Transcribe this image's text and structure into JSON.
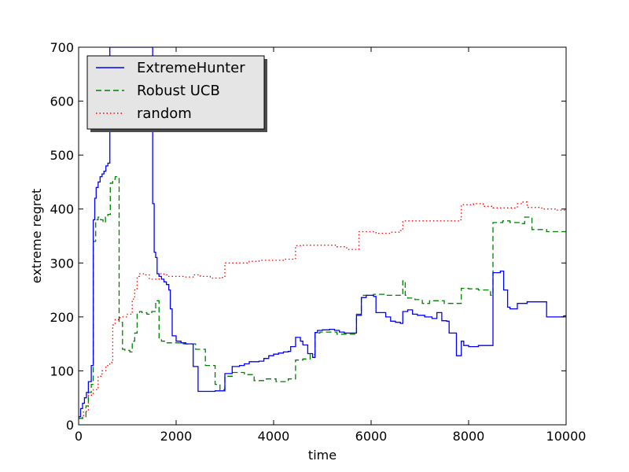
{
  "chart_data": {
    "type": "line",
    "title": "",
    "xlabel": "time",
    "ylabel": "extreme regret",
    "xlim": [
      0,
      10000
    ],
    "ylim": [
      0,
      700
    ],
    "x_ticks": [
      0,
      2000,
      4000,
      6000,
      8000,
      10000
    ],
    "y_ticks": [
      0,
      100,
      200,
      300,
      400,
      500,
      600,
      700
    ],
    "grid": false,
    "legend_position": "top-left",
    "series": [
      {
        "name": "ExtremeHunter",
        "color": "#0000ff",
        "style": "solid",
        "step": true,
        "points": [
          [
            0,
            15
          ],
          [
            40,
            30
          ],
          [
            80,
            40
          ],
          [
            120,
            50
          ],
          [
            160,
            60
          ],
          [
            200,
            80
          ],
          [
            260,
            110
          ],
          [
            300,
            380
          ],
          [
            330,
            420
          ],
          [
            360,
            440
          ],
          [
            400,
            450
          ],
          [
            440,
            460
          ],
          [
            480,
            465
          ],
          [
            520,
            470
          ],
          [
            560,
            480
          ],
          [
            600,
            485
          ],
          [
            640,
            700
          ],
          [
            1500,
            700
          ],
          [
            1520,
            410
          ],
          [
            1550,
            320
          ],
          [
            1580,
            310
          ],
          [
            1610,
            280
          ],
          [
            1650,
            275
          ],
          [
            1700,
            270
          ],
          [
            1750,
            265
          ],
          [
            1800,
            260
          ],
          [
            1850,
            250
          ],
          [
            1880,
            215
          ],
          [
            1920,
            165
          ],
          [
            2000,
            155
          ],
          [
            2100,
            152
          ],
          [
            2200,
            150
          ],
          [
            2300,
            150
          ],
          [
            2350,
            108
          ],
          [
            2450,
            62
          ],
          [
            2700,
            62
          ],
          [
            2800,
            63
          ],
          [
            2950,
            63
          ],
          [
            3000,
            95
          ],
          [
            3150,
            108
          ],
          [
            3300,
            110
          ],
          [
            3400,
            113
          ],
          [
            3500,
            117
          ],
          [
            3700,
            118
          ],
          [
            3800,
            123
          ],
          [
            3900,
            128
          ],
          [
            4000,
            131
          ],
          [
            4100,
            133
          ],
          [
            4200,
            135
          ],
          [
            4300,
            136
          ],
          [
            4350,
            145
          ],
          [
            4450,
            162
          ],
          [
            4550,
            155
          ],
          [
            4600,
            148
          ],
          [
            4700,
            132
          ],
          [
            4800,
            125
          ],
          [
            4850,
            171
          ],
          [
            4900,
            175
          ],
          [
            5000,
            176
          ],
          [
            5150,
            177
          ],
          [
            5250,
            175
          ],
          [
            5350,
            172
          ],
          [
            5450,
            170
          ],
          [
            5700,
            203
          ],
          [
            5800,
            236
          ],
          [
            5900,
            240
          ],
          [
            6050,
            238
          ],
          [
            6100,
            208
          ],
          [
            6200,
            208
          ],
          [
            6300,
            200
          ],
          [
            6400,
            192
          ],
          [
            6500,
            190
          ],
          [
            6600,
            188
          ],
          [
            6650,
            210
          ],
          [
            6750,
            213
          ],
          [
            6850,
            205
          ],
          [
            6950,
            203
          ],
          [
            7100,
            200
          ],
          [
            7250,
            197
          ],
          [
            7350,
            208
          ],
          [
            7450,
            193
          ],
          [
            7550,
            192
          ],
          [
            7600,
            170
          ],
          [
            7750,
            128
          ],
          [
            7850,
            155
          ],
          [
            7900,
            147
          ],
          [
            8000,
            145
          ],
          [
            8100,
            145
          ],
          [
            8200,
            147
          ],
          [
            8400,
            147
          ],
          [
            8500,
            282
          ],
          [
            8650,
            285
          ],
          [
            8720,
            250
          ],
          [
            8800,
            218
          ],
          [
            8850,
            215
          ],
          [
            9000,
            225
          ],
          [
            9200,
            228
          ],
          [
            9450,
            228
          ],
          [
            9600,
            200
          ],
          [
            9950,
            202
          ],
          [
            10000,
            202
          ]
        ]
      },
      {
        "name": "Robust UCB",
        "color": "#008000",
        "style": "dashed",
        "step": true,
        "points": [
          [
            0,
            12
          ],
          [
            80,
            15
          ],
          [
            150,
            35
          ],
          [
            200,
            60
          ],
          [
            260,
            75
          ],
          [
            300,
            340
          ],
          [
            350,
            380
          ],
          [
            400,
            385
          ],
          [
            450,
            380
          ],
          [
            500,
            375
          ],
          [
            550,
            385
          ],
          [
            600,
            390
          ],
          [
            650,
            448
          ],
          [
            700,
            455
          ],
          [
            750,
            460
          ],
          [
            800,
            460
          ],
          [
            830,
            190
          ],
          [
            900,
            140
          ],
          [
            950,
            138
          ],
          [
            1050,
            135
          ],
          [
            1100,
            155
          ],
          [
            1150,
            170
          ],
          [
            1200,
            205
          ],
          [
            1250,
            210
          ],
          [
            1300,
            208
          ],
          [
            1400,
            205
          ],
          [
            1500,
            210
          ],
          [
            1580,
            230
          ],
          [
            1650,
            160
          ],
          [
            1700,
            155
          ],
          [
            1800,
            152
          ],
          [
            1950,
            152
          ],
          [
            2100,
            150
          ],
          [
            2250,
            150
          ],
          [
            2400,
            140
          ],
          [
            2600,
            110
          ],
          [
            2800,
            75
          ],
          [
            2900,
            65
          ],
          [
            3000,
            90
          ],
          [
            3150,
            97
          ],
          [
            3400,
            93
          ],
          [
            3600,
            82
          ],
          [
            3850,
            85
          ],
          [
            4050,
            80
          ],
          [
            4300,
            85
          ],
          [
            4450,
            120
          ],
          [
            4600,
            122
          ],
          [
            4750,
            130
          ],
          [
            4850,
            170
          ],
          [
            4950,
            172
          ],
          [
            5100,
            172
          ],
          [
            5300,
            168
          ],
          [
            5700,
            205
          ],
          [
            5800,
            240
          ],
          [
            6050,
            242
          ],
          [
            6300,
            240
          ],
          [
            6600,
            240
          ],
          [
            6650,
            267
          ],
          [
            6700,
            240
          ],
          [
            6750,
            235
          ],
          [
            6900,
            232
          ],
          [
            7050,
            225
          ],
          [
            7200,
            230
          ],
          [
            7500,
            225
          ],
          [
            7750,
            225
          ],
          [
            7850,
            253
          ],
          [
            8000,
            252
          ],
          [
            8200,
            250
          ],
          [
            8400,
            248
          ],
          [
            8450,
            240
          ],
          [
            8500,
            375
          ],
          [
            8700,
            378
          ],
          [
            8850,
            375
          ],
          [
            9100,
            373
          ],
          [
            9150,
            385
          ],
          [
            9300,
            362
          ],
          [
            9600,
            358
          ],
          [
            9900,
            358
          ],
          [
            10000,
            362
          ]
        ]
      },
      {
        "name": "random",
        "color": "#ff0000",
        "style": "dotted",
        "step": true,
        "points": [
          [
            0,
            12
          ],
          [
            100,
            25
          ],
          [
            200,
            55
          ],
          [
            300,
            65
          ],
          [
            400,
            90
          ],
          [
            480,
            100
          ],
          [
            560,
            110
          ],
          [
            640,
            115
          ],
          [
            680,
            120
          ],
          [
            700,
            185
          ],
          [
            750,
            195
          ],
          [
            850,
            200
          ],
          [
            1000,
            205
          ],
          [
            1100,
            233
          ],
          [
            1150,
            250
          ],
          [
            1200,
            275
          ],
          [
            1250,
            280
          ],
          [
            1350,
            278
          ],
          [
            1450,
            270
          ],
          [
            1550,
            270
          ],
          [
            1650,
            280
          ],
          [
            1750,
            278
          ],
          [
            1850,
            275
          ],
          [
            2000,
            275
          ],
          [
            2200,
            274
          ],
          [
            2350,
            278
          ],
          [
            2500,
            275
          ],
          [
            2700,
            272
          ],
          [
            2900,
            273
          ],
          [
            3000,
            300
          ],
          [
            3150,
            300
          ],
          [
            3300,
            300
          ],
          [
            3500,
            303
          ],
          [
            3700,
            305
          ],
          [
            3900,
            305
          ],
          [
            4000,
            305
          ],
          [
            4200,
            307
          ],
          [
            4450,
            332
          ],
          [
            4600,
            333
          ],
          [
            4900,
            333
          ],
          [
            5100,
            333
          ],
          [
            5300,
            330
          ],
          [
            5500,
            325
          ],
          [
            5700,
            325
          ],
          [
            5750,
            358
          ],
          [
            5900,
            358
          ],
          [
            6100,
            355
          ],
          [
            6400,
            357
          ],
          [
            6600,
            360
          ],
          [
            6650,
            378
          ],
          [
            6900,
            378
          ],
          [
            7200,
            378
          ],
          [
            7500,
            378
          ],
          [
            7800,
            380
          ],
          [
            7850,
            408
          ],
          [
            8100,
            410
          ],
          [
            8300,
            405
          ],
          [
            8500,
            402
          ],
          [
            8800,
            402
          ],
          [
            9000,
            410
          ],
          [
            9100,
            413
          ],
          [
            9200,
            403
          ],
          [
            9500,
            400
          ],
          [
            9800,
            398
          ],
          [
            10000,
            398
          ]
        ]
      }
    ]
  }
}
